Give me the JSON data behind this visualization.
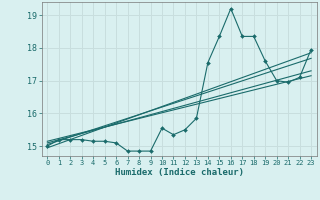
{
  "title": "",
  "xlabel": "Humidex (Indice chaleur)",
  "bg_color": "#d9f0f0",
  "grid_color": "#c8dede",
  "line_color": "#1a6b6b",
  "xlim": [
    -0.5,
    23.5
  ],
  "ylim": [
    14.7,
    19.4
  ],
  "yticks": [
    15,
    16,
    17,
    18,
    19
  ],
  "xticks": [
    0,
    1,
    2,
    3,
    4,
    5,
    6,
    7,
    8,
    9,
    10,
    11,
    12,
    13,
    14,
    15,
    16,
    17,
    18,
    19,
    20,
    21,
    22,
    23
  ],
  "data_x": [
    0,
    1,
    2,
    3,
    4,
    5,
    6,
    7,
    8,
    9,
    10,
    11,
    12,
    13,
    14,
    15,
    16,
    17,
    18,
    19,
    20,
    21,
    22,
    23
  ],
  "data_y": [
    15.0,
    15.2,
    15.2,
    15.2,
    15.15,
    15.15,
    15.1,
    14.85,
    14.85,
    14.85,
    15.55,
    15.35,
    15.5,
    15.85,
    17.55,
    18.35,
    19.2,
    18.35,
    18.35,
    17.6,
    17.0,
    16.95,
    17.1,
    17.95
  ],
  "reg_lines": [
    {
      "x0": 0,
      "y0": 14.95,
      "x1": 23,
      "y1": 17.85
    },
    {
      "x0": 0,
      "y0": 15.05,
      "x1": 23,
      "y1": 17.68
    },
    {
      "x0": 0,
      "y0": 15.1,
      "x1": 23,
      "y1": 17.3
    },
    {
      "x0": 0,
      "y0": 15.15,
      "x1": 23,
      "y1": 17.15
    }
  ]
}
